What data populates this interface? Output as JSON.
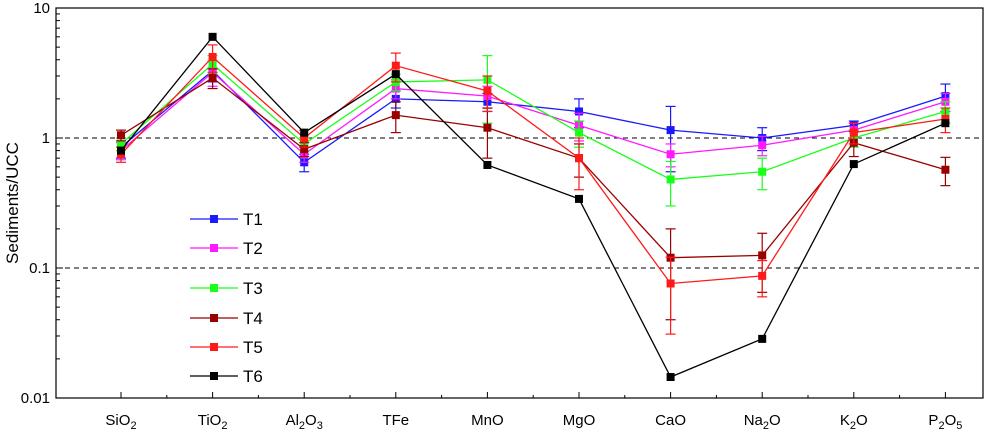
{
  "chart_data": {
    "type": "line",
    "title": "",
    "xlabel": "",
    "ylabel": "Sediments/UCC",
    "yscale": "log",
    "ylim": [
      0.01,
      10
    ],
    "y_ticks": [
      {
        "value": 0.01,
        "label": "0.01"
      },
      {
        "value": 0.1,
        "label": "0.1"
      },
      {
        "value": 1,
        "label": "1"
      },
      {
        "value": 10,
        "label": "10"
      }
    ],
    "reference_lines": [
      1,
      0.1
    ],
    "categories": [
      {
        "base": "SiO",
        "sub": "2",
        "tail": "",
        "sub2": ""
      },
      {
        "base": "TiO",
        "sub": "2",
        "tail": "",
        "sub2": ""
      },
      {
        "base": "Al",
        "sub": "2",
        "tail": "O",
        "sub2": "3"
      },
      {
        "base": "TFe",
        "sub": "",
        "tail": "",
        "sub2": ""
      },
      {
        "base": "MnO",
        "sub": "",
        "tail": "",
        "sub2": ""
      },
      {
        "base": "MgO",
        "sub": "",
        "tail": "",
        "sub2": ""
      },
      {
        "base": "CaO",
        "sub": "",
        "tail": "",
        "sub2": ""
      },
      {
        "base": "Na",
        "sub": "2",
        "tail": "O",
        "sub2": ""
      },
      {
        "base": "K",
        "sub": "2",
        "tail": "O",
        "sub2": ""
      },
      {
        "base": "P",
        "sub": "2",
        "tail": "O",
        "sub2": "5"
      }
    ],
    "series": [
      {
        "name": "T1",
        "color": "#1a1aff",
        "values": [
          0.85,
          3.3,
          0.65,
          2.0,
          1.9,
          1.6,
          1.15,
          1.0,
          1.25,
          2.1
        ],
        "errors": [
          0.15,
          0.6,
          0.1,
          0.3,
          0.3,
          0.4,
          0.6,
          0.2,
          0.1,
          0.5
        ]
      },
      {
        "name": "T2",
        "color": "#ff19ff",
        "values": [
          0.8,
          3.2,
          0.75,
          2.4,
          2.1,
          1.25,
          0.75,
          0.88,
          1.15,
          1.9
        ],
        "errors": [
          0.12,
          0.7,
          0.1,
          0.4,
          0.4,
          0.3,
          0.15,
          0.15,
          0.15,
          0.3
        ]
      },
      {
        "name": "T3",
        "color": "#1aff1a",
        "values": [
          0.9,
          3.7,
          0.9,
          2.7,
          2.8,
          1.1,
          0.48,
          0.55,
          1.0,
          1.6
        ],
        "errors": [
          0.1,
          0.6,
          0.1,
          0.4,
          1.5,
          0.25,
          0.18,
          0.15,
          0.15,
          0.3
        ]
      },
      {
        "name": "T4",
        "color": "#990000",
        "values": [
          1.05,
          2.9,
          0.82,
          1.5,
          1.2,
          0.7,
          0.12,
          0.125,
          0.92,
          0.57
        ],
        "errors": [
          0.1,
          0.5,
          0.1,
          0.4,
          0.5,
          0.2,
          0.08,
          0.06,
          0.2,
          0.14
        ]
      },
      {
        "name": "T5",
        "color": "#ff1a1a",
        "values": [
          0.75,
          4.2,
          1.0,
          3.6,
          2.3,
          0.7,
          0.076,
          0.087,
          1.1,
          1.4
        ],
        "errors": [
          0.1,
          1.0,
          0.15,
          0.9,
          0.7,
          0.3,
          0.045,
          0.027,
          0.2,
          0.3
        ]
      },
      {
        "name": "T6",
        "color": "#000000",
        "values": [
          0.8,
          6.0,
          1.1,
          3.1,
          0.62,
          0.34,
          0.0145,
          0.0285,
          0.63,
          1.3
        ],
        "errors": [
          0,
          0,
          0,
          0,
          0,
          0,
          0,
          0,
          0,
          0
        ]
      }
    ],
    "legend": {
      "position": "lower-left"
    }
  }
}
